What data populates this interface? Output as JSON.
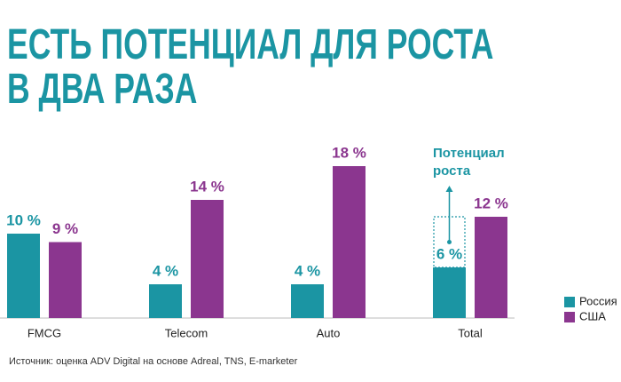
{
  "chart_data": {
    "type": "bar",
    "title": "ЕСТЬ ПОТЕНЦИАЛ ДЛЯ РОСТА\nВ ДВА РАЗА",
    "categories": [
      "FMCG",
      "Telecom",
      "Auto",
      "Total"
    ],
    "series": [
      {
        "name": "Россия",
        "color": "#1b95a3",
        "values": [
          10,
          4,
          4,
          6
        ],
        "value_labels": [
          "10 %",
          "4 %",
          "4 %",
          "6 %"
        ]
      },
      {
        "name": "США",
        "color": "#8b368f",
        "values": [
          9,
          14,
          18,
          12
        ],
        "value_labels": [
          "9 %",
          "14 %",
          "18 %",
          "12 %"
        ]
      }
    ],
    "annotation": "Потенциал\nроста",
    "source": "Источник: оценка ADV Digital на основе Adreal, TNS, E-marketer",
    "legend": "bottom-right"
  }
}
